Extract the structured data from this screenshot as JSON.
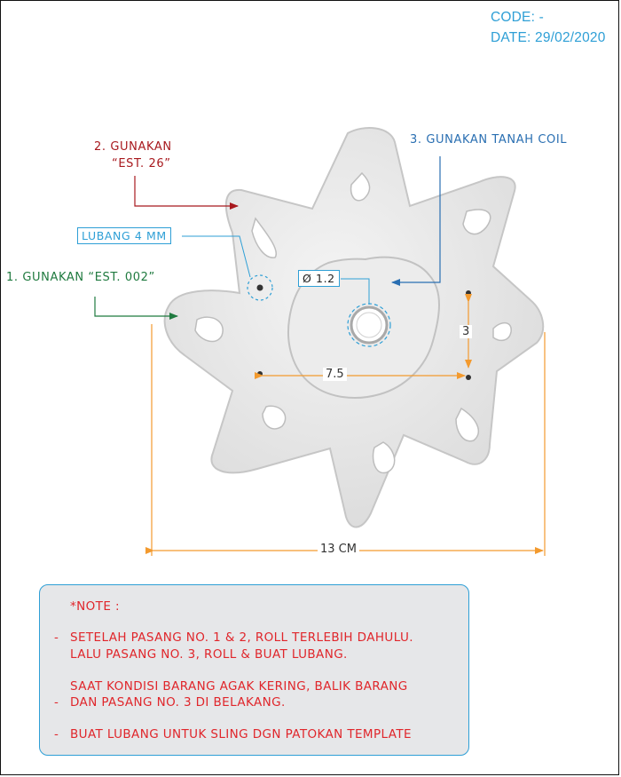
{
  "header": {
    "code": "CODE: -",
    "date": "DATE: 29/02/2020"
  },
  "labels": {
    "gunakan_est26_line1": "2. GUNAKAN",
    "gunakan_est26_line2": "“EST. 26”",
    "tanah_coil": "3. GUNAKAN TANAH COIL",
    "lubang": "LUBANG 4 MM",
    "gunakan_est002": "1. GUNAKAN “EST. 002”"
  },
  "dimensions": {
    "hole_diameter": "Ø 1.2",
    "vertical": "3",
    "horizontal": "7.5",
    "overall": "13 CM"
  },
  "colors": {
    "accent_blue": "#2e9fd6",
    "red_label": "#a8191e",
    "green_label": "#1f7a3f",
    "dimension_orange": "#f39a2e",
    "note_text": "#e0262b"
  },
  "note": {
    "title": "*NOTE :",
    "items": [
      {
        "bullet": "-",
        "lines": [
          "SETELAH PASANG NO. 1 & 2, ROLL TERLEBIH DAHULU.",
          "LALU  PASANG NO. 3, ROLL & BUAT LUBANG."
        ]
      },
      {
        "bullet": "-",
        "lines": [
          "SAAT KONDISI BARANG AGAK KERING,  BALIK BARANG",
          "DAN PASANG NO. 3 DI BELAKANG."
        ]
      },
      {
        "bullet": "-",
        "lines": [
          "BUAT LUBANG UNTUK SLING DGN PATOKAN TEMPLATE"
        ]
      }
    ]
  }
}
